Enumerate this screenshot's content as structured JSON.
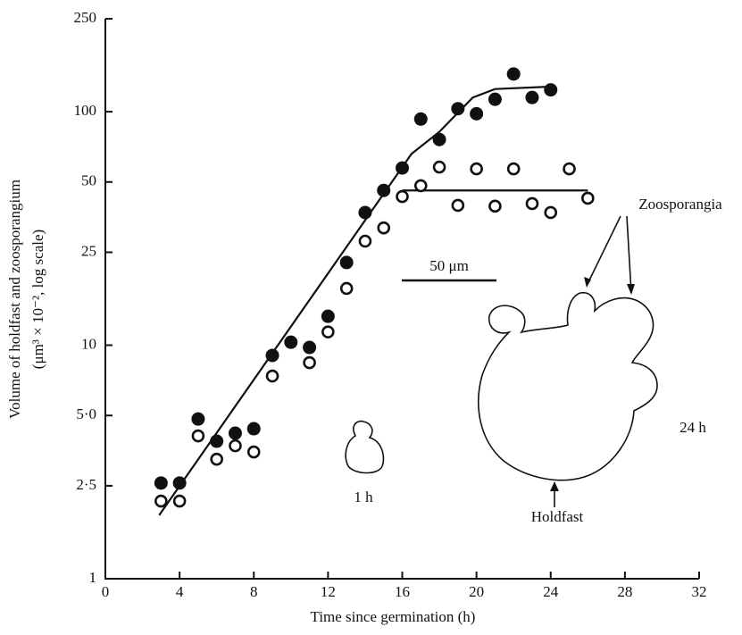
{
  "chart_data": {
    "type": "scatter",
    "x_label": "Time since germination (h)",
    "y_label": [
      "Volume of holdfast and zoosporangium",
      "(μm³ × 10⁻², log scale)"
    ],
    "xlim": [
      0,
      32
    ],
    "xticks": [
      0,
      4,
      8,
      12,
      16,
      20,
      24,
      28,
      32
    ],
    "ylim": [
      1,
      250
    ],
    "log_y": true,
    "yticks": [
      1,
      {
        "value": 2.5,
        "label": "2·5"
      },
      {
        "value": 5,
        "label": "5·0"
      },
      10,
      25,
      50,
      100,
      250
    ],
    "series": [
      {
        "marker": "filled",
        "color": "#111111",
        "x": [
          3,
          4,
          5,
          6,
          7,
          8,
          9,
          10,
          11,
          12,
          13,
          14,
          15,
          16,
          17,
          18,
          19,
          20,
          21,
          22,
          23,
          24
        ],
        "values": [
          2.57,
          2.57,
          4.83,
          3.88,
          4.2,
          4.39,
          9.04,
          10.3,
          9.78,
          13.3,
          22.6,
          37,
          46,
          57.4,
          93,
          76,
          103,
          98,
          113,
          145,
          115,
          124
        ]
      },
      {
        "marker": "open",
        "color": "#111111",
        "x": [
          3,
          4,
          5,
          6,
          7,
          8,
          9,
          11,
          12,
          13,
          14,
          15,
          16,
          17,
          18,
          19,
          20,
          21,
          22,
          23,
          24,
          25,
          26
        ],
        "values": [
          2.15,
          2.15,
          4.09,
          3.25,
          3.71,
          3.49,
          7.38,
          8.42,
          11.4,
          17.5,
          27.9,
          31.8,
          43.3,
          48.2,
          57.9,
          39.7,
          56.9,
          39.4,
          56.9,
          40.4,
          37,
          56.9,
          42.6
        ]
      }
    ],
    "fits": [
      {
        "x": [
          2.9,
          16.5,
          18,
          19.8,
          21,
          24
        ],
        "values": [
          1.87,
          66,
          82,
          115,
          125,
          128
        ]
      },
      {
        "x": [
          16,
          26
        ],
        "values": [
          46,
          46
        ]
      }
    ],
    "annotations": [
      "50 μm",
      "Zoosporangia",
      "1 h",
      "24 h",
      "Holdfast"
    ]
  }
}
